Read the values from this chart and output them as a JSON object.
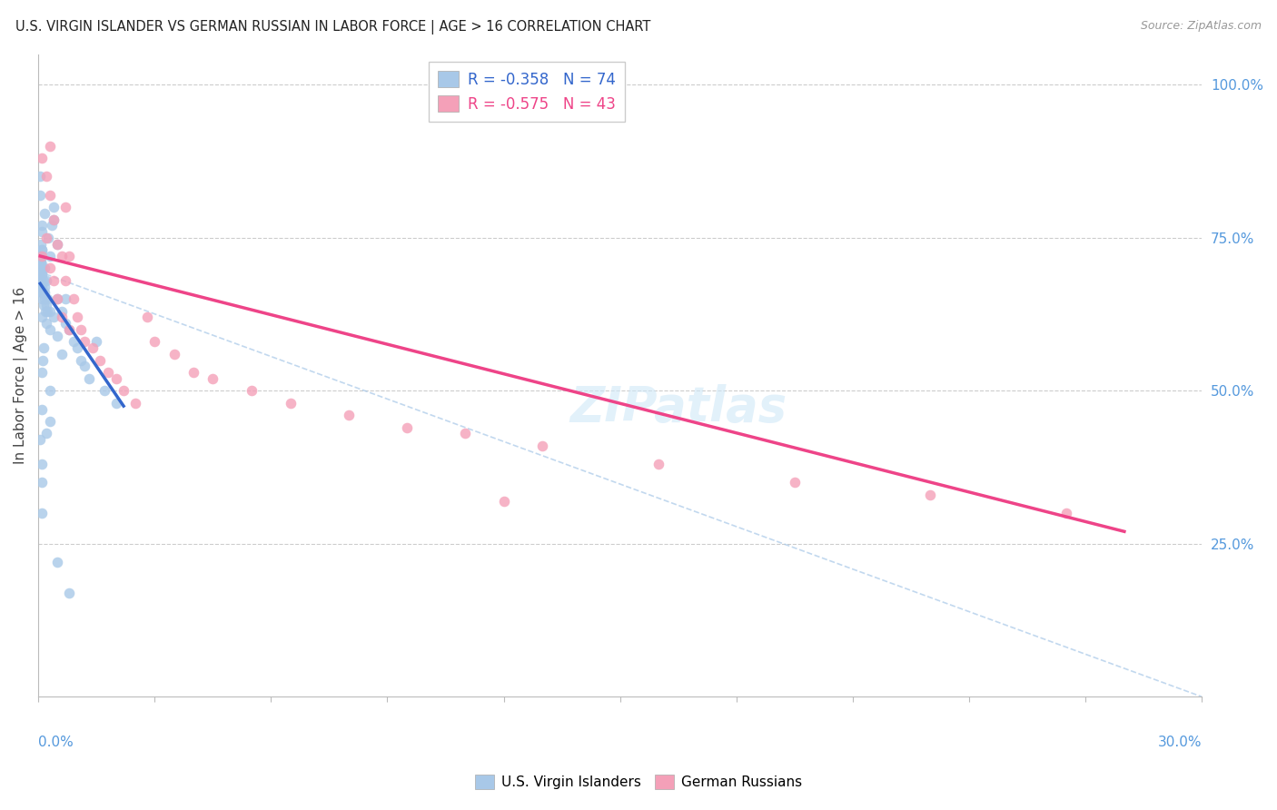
{
  "title": "U.S. VIRGIN ISLANDER VS GERMAN RUSSIAN IN LABOR FORCE | AGE > 16 CORRELATION CHART",
  "source": "Source: ZipAtlas.com",
  "ylabel": "In Labor Force | Age > 16",
  "ytick_labels": [
    "100.0%",
    "75.0%",
    "50.0%",
    "25.0%"
  ],
  "ytick_values": [
    1.0,
    0.75,
    0.5,
    0.25
  ],
  "xmin": 0.0,
  "xmax": 0.3,
  "ymin": 0.0,
  "ymax": 1.05,
  "R1": -0.358,
  "N1": 74,
  "R2": -0.575,
  "N2": 43,
  "color_blue": "#a8c8e8",
  "color_blue_line": "#3366cc",
  "color_pink": "#f4a0b8",
  "color_pink_line": "#ee4488",
  "color_dashed": "#a8c8e8",
  "color_title": "#222222",
  "color_source": "#999999",
  "color_axis_labels": "#5599dd",
  "color_grid": "#cccccc",
  "legend_label1": "U.S. Virgin Islanders",
  "legend_label2": "German Russians",
  "blue_line_x": [
    0.0005,
    0.022
  ],
  "blue_line_y": [
    0.675,
    0.475
  ],
  "pink_line_x": [
    0.0005,
    0.28
  ],
  "pink_line_y": [
    0.72,
    0.27
  ],
  "dashed_line_x": [
    0.0,
    0.3
  ],
  "dashed_line_y": [
    0.695,
    0.0
  ],
  "blue_x": [
    0.0003,
    0.0004,
    0.0005,
    0.0006,
    0.0007,
    0.0008,
    0.0009,
    0.001,
    0.001,
    0.001,
    0.0012,
    0.0013,
    0.0014,
    0.0015,
    0.0015,
    0.0016,
    0.0017,
    0.0018,
    0.002,
    0.002,
    0.0022,
    0.0024,
    0.0025,
    0.003,
    0.003,
    0.0035,
    0.004,
    0.004,
    0.005,
    0.005,
    0.006,
    0.007,
    0.007,
    0.008,
    0.009,
    0.01,
    0.011,
    0.012,
    0.013,
    0.015,
    0.017,
    0.02,
    0.0005,
    0.0006,
    0.0007,
    0.0008,
    0.0009,
    0.001,
    0.001,
    0.0015,
    0.002,
    0.003,
    0.004,
    0.005,
    0.006,
    0.002,
    0.003,
    0.001,
    0.001,
    0.0005,
    0.0005,
    0.0006,
    0.0007,
    0.0008,
    0.0009,
    0.001,
    0.001,
    0.0012,
    0.0014,
    0.003,
    0.005,
    0.008,
    0.0005,
    0.0008
  ],
  "blue_y": [
    0.69,
    0.7,
    0.68,
    0.71,
    0.67,
    0.69,
    0.7,
    0.65,
    0.67,
    0.69,
    0.66,
    0.68,
    0.64,
    0.66,
    0.7,
    0.65,
    0.67,
    0.63,
    0.64,
    0.68,
    0.65,
    0.63,
    0.75,
    0.63,
    0.72,
    0.77,
    0.8,
    0.78,
    0.74,
    0.65,
    0.63,
    0.61,
    0.65,
    0.6,
    0.58,
    0.57,
    0.55,
    0.54,
    0.52,
    0.58,
    0.5,
    0.48,
    0.72,
    0.71,
    0.68,
    0.73,
    0.66,
    0.62,
    0.76,
    0.79,
    0.61,
    0.6,
    0.62,
    0.59,
    0.56,
    0.43,
    0.45,
    0.38,
    0.3,
    0.85,
    0.82,
    0.74,
    0.71,
    0.77,
    0.73,
    0.53,
    0.47,
    0.55,
    0.57,
    0.5,
    0.22,
    0.17,
    0.42,
    0.35
  ],
  "pink_x": [
    0.001,
    0.001,
    0.002,
    0.002,
    0.003,
    0.003,
    0.004,
    0.004,
    0.005,
    0.005,
    0.006,
    0.006,
    0.007,
    0.008,
    0.008,
    0.009,
    0.01,
    0.011,
    0.012,
    0.014,
    0.016,
    0.018,
    0.02,
    0.022,
    0.025,
    0.028,
    0.03,
    0.035,
    0.04,
    0.045,
    0.055,
    0.065,
    0.08,
    0.095,
    0.11,
    0.13,
    0.16,
    0.195,
    0.23,
    0.265,
    0.003,
    0.007,
    0.12
  ],
  "pink_y": [
    0.88,
    0.72,
    0.85,
    0.75,
    0.82,
    0.7,
    0.78,
    0.68,
    0.74,
    0.65,
    0.72,
    0.62,
    0.68,
    0.72,
    0.6,
    0.65,
    0.62,
    0.6,
    0.58,
    0.57,
    0.55,
    0.53,
    0.52,
    0.5,
    0.48,
    0.62,
    0.58,
    0.56,
    0.53,
    0.52,
    0.5,
    0.48,
    0.46,
    0.44,
    0.43,
    0.41,
    0.38,
    0.35,
    0.33,
    0.3,
    0.9,
    0.8,
    0.32
  ]
}
